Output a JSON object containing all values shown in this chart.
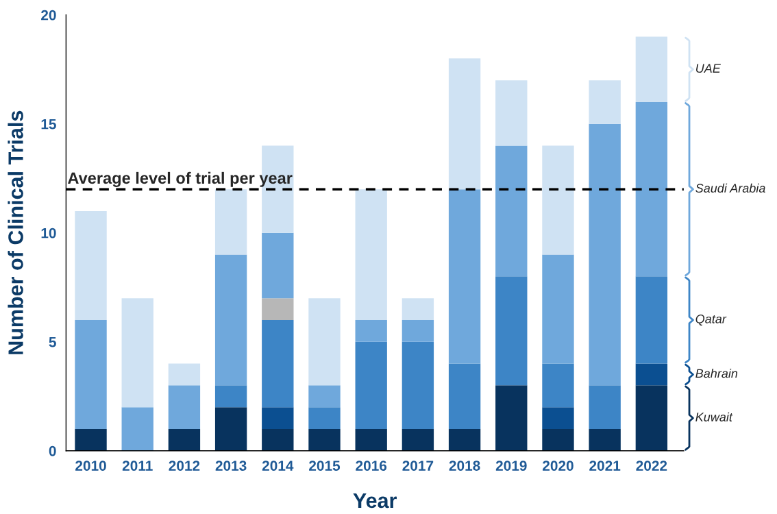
{
  "chart_data": {
    "type": "bar",
    "stacked": true,
    "xlabel": "Year",
    "ylabel": "Number of Clinical Trials",
    "categories": [
      "2010",
      "2011",
      "2012",
      "2013",
      "2014",
      "2015",
      "2016",
      "2017",
      "2018",
      "2019",
      "2020",
      "2021",
      "2022"
    ],
    "series": [
      {
        "name": "Kuwait",
        "color": "#08335e",
        "values": [
          1,
          0,
          1,
          2,
          1,
          1,
          1,
          1,
          1,
          3,
          1,
          1,
          3
        ]
      },
      {
        "name": "Bahrain",
        "color": "#0b4f91",
        "values": [
          0,
          0,
          0,
          0,
          1,
          0,
          0,
          0,
          0,
          0,
          1,
          0,
          1
        ]
      },
      {
        "name": "Qatar",
        "color": "#3d85c6",
        "values": [
          0,
          0,
          0,
          1,
          4,
          1,
          4,
          4,
          3,
          5,
          2,
          2,
          4
        ]
      },
      {
        "color": "#b7b7b7",
        "values": [
          0,
          0,
          0,
          0,
          1,
          0,
          0,
          0,
          0,
          0,
          0,
          0,
          0
        ]
      },
      {
        "name": "Saudi Arabia",
        "color": "#6fa8dc",
        "values": [
          5,
          2,
          2,
          6,
          3,
          1,
          1,
          1,
          8,
          6,
          5,
          12,
          8
        ]
      },
      {
        "name": "UAE",
        "color": "#cfe2f3",
        "values": [
          5,
          5,
          1,
          3,
          4,
          4,
          6,
          1,
          6,
          3,
          5,
          2,
          3
        ]
      }
    ],
    "ylim": [
      0,
      20
    ],
    "yticks": [
      0,
      5,
      10,
      15,
      20
    ],
    "grid": false,
    "legend": "right",
    "ref_lines": [
      {
        "axis": "y",
        "value": 12,
        "label": "Average level of trial per year",
        "color": "#000000",
        "line_style": "dashed"
      }
    ]
  }
}
